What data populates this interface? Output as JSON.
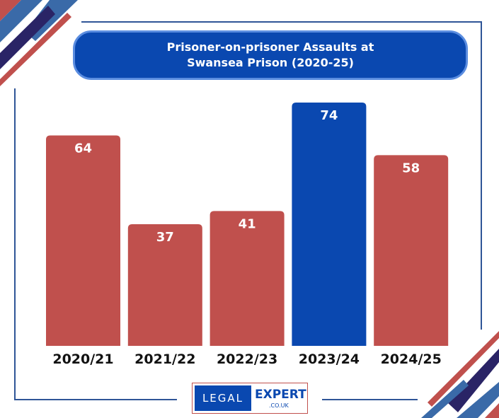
{
  "chart_data": {
    "type": "bar",
    "title": "Prisoner-on-prisoner Assaults at Swansea Prison (2020-25)",
    "title_lines": [
      "Prisoner-on-prisoner Assaults at",
      "Swansea Prison (2020-25)"
    ],
    "categories": [
      "2020/21",
      "2021/22",
      "2022/23",
      "2023/24",
      "2024/25"
    ],
    "values": [
      64,
      37,
      41,
      74,
      58
    ],
    "highlight_index": 3,
    "ylim": [
      0,
      74
    ],
    "grid": false,
    "colors": {
      "bar": "#c0504d",
      "highlight": "#0a48b0"
    }
  },
  "logo": {
    "left": "LEGAL",
    "right": "EXPERT",
    "domain": ".CO.UK"
  }
}
